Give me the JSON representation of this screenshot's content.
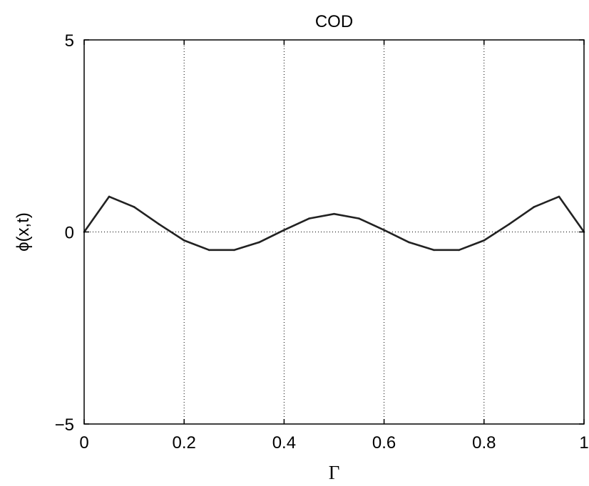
{
  "chart_data": {
    "type": "line",
    "title": "COD",
    "xlabel": "Γ",
    "ylabel": "ϕ(x,t)",
    "xlim": [
      0,
      1
    ],
    "ylim": [
      -5,
      5
    ],
    "xticks": [
      "0",
      "0.2",
      "0.4",
      "0.6",
      "0.8",
      "1"
    ],
    "yticks": [
      "−5",
      "0",
      "5"
    ],
    "grid": "dotted",
    "series": [
      {
        "color": "#222222",
        "x": [
          0,
          0.05,
          0.1,
          0.15,
          0.2,
          0.25,
          0.3,
          0.35,
          0.4,
          0.45,
          0.5,
          0.55,
          0.6,
          0.65,
          0.7,
          0.75,
          0.8,
          0.85,
          0.9,
          0.95,
          1.0
        ],
        "y": [
          0,
          0.92,
          0.65,
          0.2,
          -0.22,
          -0.47,
          -0.47,
          -0.27,
          0.05,
          0.35,
          0.47,
          0.35,
          0.05,
          -0.27,
          -0.47,
          -0.47,
          -0.22,
          0.2,
          0.65,
          0.92,
          0
        ]
      }
    ]
  }
}
